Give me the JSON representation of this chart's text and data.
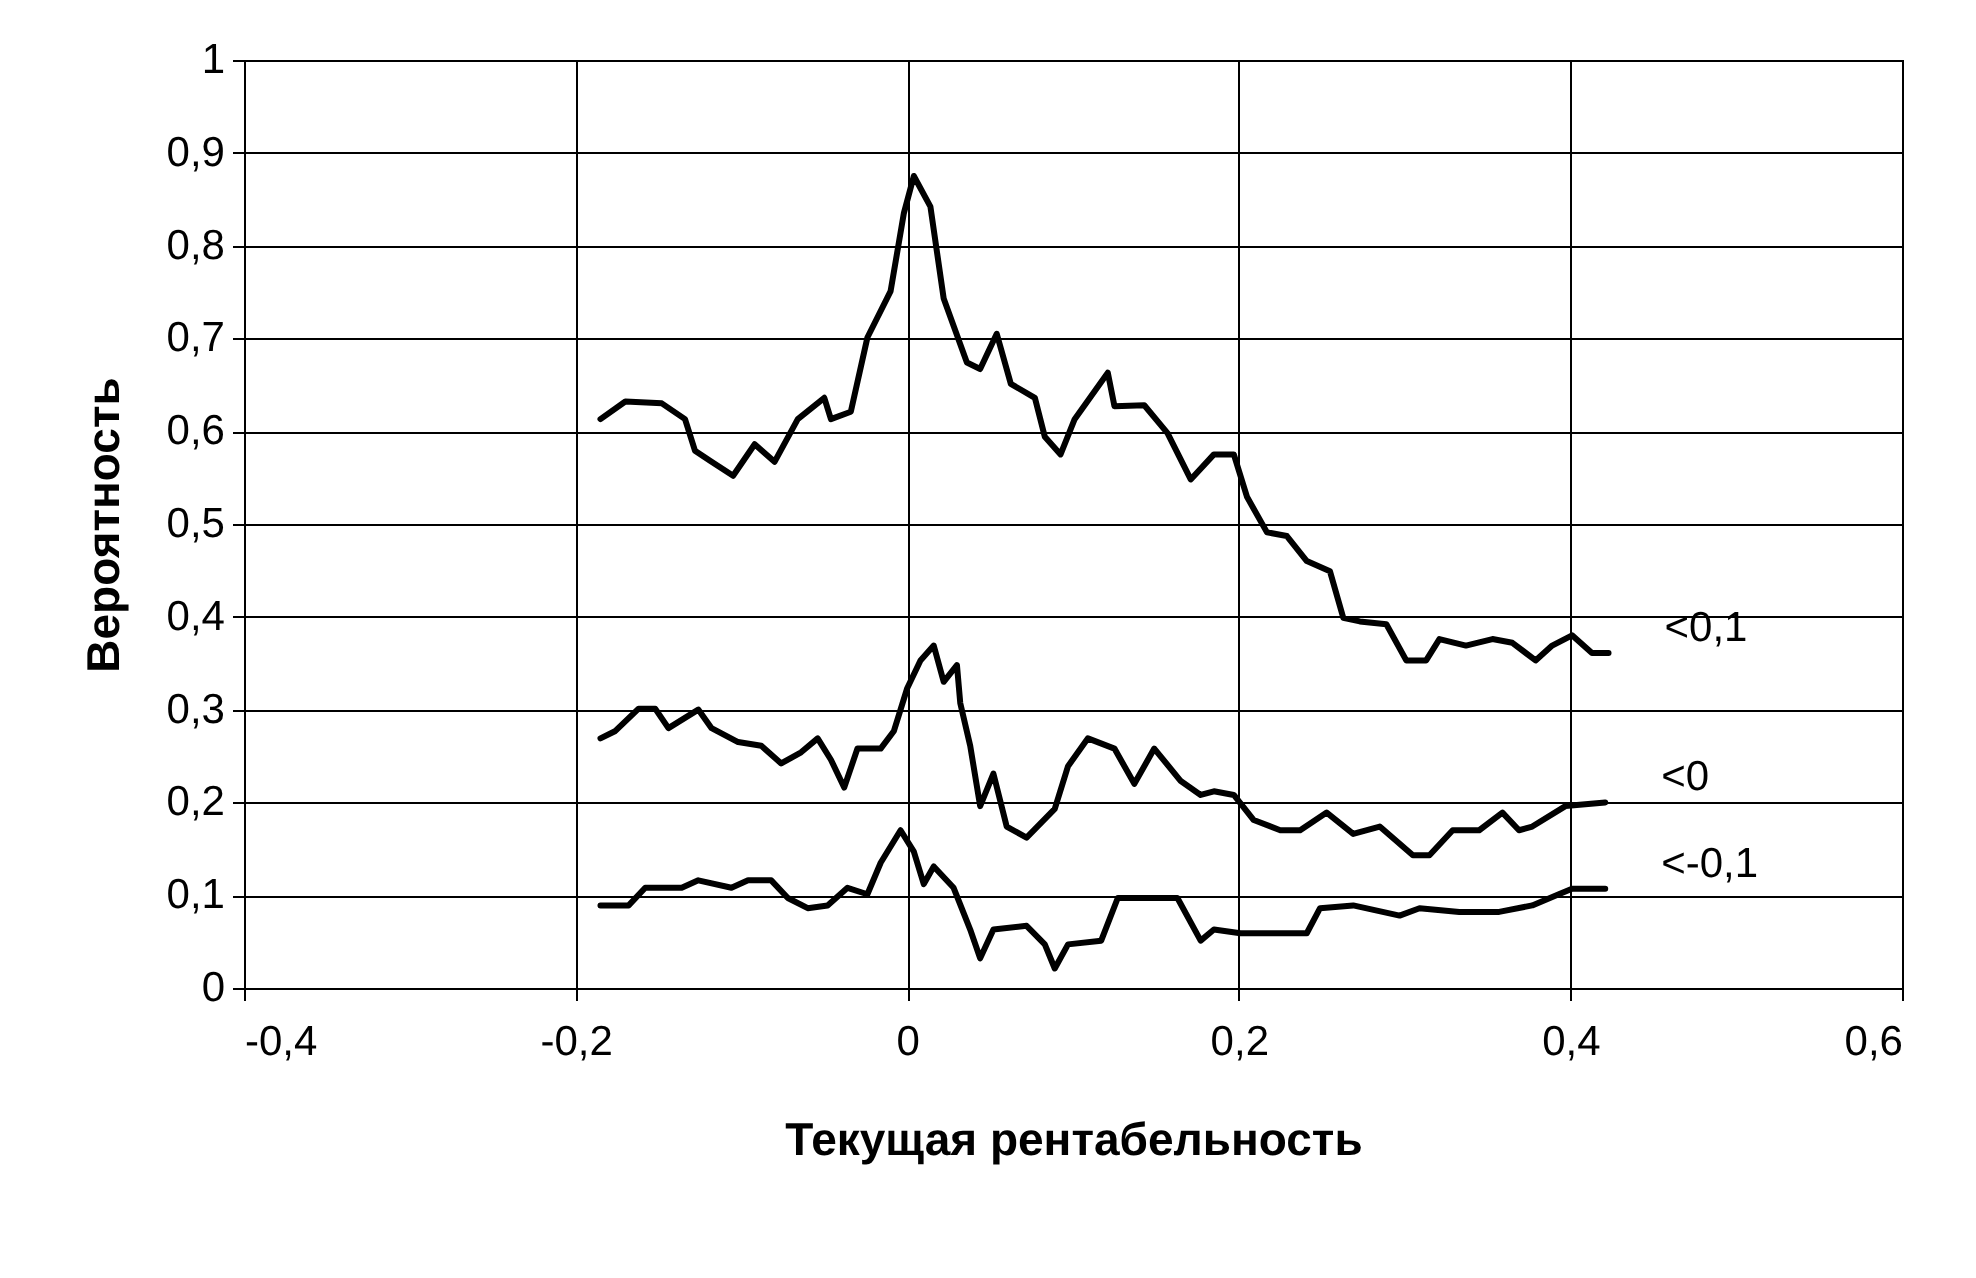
{
  "chart_data": {
    "type": "line",
    "xlabel": "Текущая рентабельность",
    "ylabel": "Вероятность",
    "xlim": [
      -0.4,
      0.6
    ],
    "ylim": [
      0,
      1
    ],
    "xticks": [
      {
        "value": -0.4,
        "label": "-0,4"
      },
      {
        "value": -0.2,
        "label": "-0,2"
      },
      0,
      {
        "value": 0.2,
        "label": "0,2"
      },
      {
        "value": 0.4,
        "label": "0,4"
      },
      {
        "value": 0.6,
        "label": "0,6"
      }
    ],
    "yticks": [
      0,
      {
        "value": 0.1,
        "label": "0,1"
      },
      {
        "value": 0.2,
        "label": "0,2"
      },
      {
        "value": 0.3,
        "label": "0,3"
      },
      {
        "value": 0.4,
        "label": "0,4"
      },
      {
        "value": 0.5,
        "label": "0,5"
      },
      {
        "value": 0.6,
        "label": "0,6"
      },
      {
        "value": 0.7,
        "label": "0,7"
      },
      {
        "value": 0.8,
        "label": "0,8"
      },
      {
        "value": 0.9,
        "label": "0,9"
      },
      1
    ],
    "grid": true,
    "legend": false,
    "marker": "none",
    "line_style": "solid",
    "series": [
      {
        "name": "<0,1",
        "color": "#000000",
        "x": [
          -0.185,
          -0.17,
          -0.148,
          -0.134,
          -0.128,
          -0.118,
          -0.105,
          -0.092,
          -0.08,
          -0.066,
          -0.05,
          -0.046,
          -0.034,
          -0.024,
          -0.01,
          -0.002,
          0.004,
          0.014,
          0.022,
          0.036,
          0.044,
          0.054,
          0.0625,
          0.077,
          0.083,
          0.0925,
          0.101,
          0.121,
          0.125,
          0.143,
          0.157,
          0.171,
          0.185,
          0.197,
          0.205,
          0.217,
          0.229,
          0.241,
          0.255,
          0.263,
          0.273,
          0.289,
          0.301,
          0.313,
          0.321,
          0.337,
          0.353,
          0.365,
          0.379,
          0.389,
          0.401,
          0.413,
          0.423
        ],
        "values": [
          0.613,
          0.632,
          0.63,
          0.613,
          0.579,
          0.567,
          0.552,
          0.586,
          0.567,
          0.613,
          0.636,
          0.613,
          0.621,
          0.701,
          0.751,
          0.835,
          0.875,
          0.842,
          0.743,
          0.674,
          0.667,
          0.705,
          0.651,
          0.636,
          0.594,
          0.575,
          0.613,
          0.663,
          0.627,
          0.628,
          0.598,
          0.548,
          0.575,
          0.575,
          0.529,
          0.491,
          0.487,
          0.46,
          0.449,
          0.399,
          0.395,
          0.392,
          0.353,
          0.353,
          0.376,
          0.369,
          0.376,
          0.372,
          0.353,
          0.369,
          0.38,
          0.361,
          0.361
        ]
      },
      {
        "name": "<0",
        "color": "#000000",
        "x": [
          -0.185,
          -0.176,
          -0.162,
          -0.152,
          -0.144,
          -0.126,
          -0.118,
          -0.102,
          -0.088,
          -0.076,
          -0.064,
          -0.054,
          -0.046,
          -0.038,
          -0.03,
          -0.016,
          -0.008,
          0.0,
          0.008,
          0.016,
          0.022,
          0.03,
          0.032,
          0.038,
          0.044,
          0.052,
          0.06,
          0.072,
          0.089,
          0.097,
          0.109,
          0.125,
          0.137,
          0.149,
          0.165,
          0.177,
          0.185,
          0.197,
          0.209,
          0.225,
          0.237,
          0.253,
          0.269,
          0.285,
          0.305,
          0.315,
          0.329,
          0.345,
          0.359,
          0.369,
          0.377,
          0.397,
          0.421
        ],
        "values": [
          0.269,
          0.277,
          0.301,
          0.301,
          0.28,
          0.3,
          0.28,
          0.265,
          0.261,
          0.242,
          0.254,
          0.269,
          0.246,
          0.216,
          0.258,
          0.258,
          0.277,
          0.323,
          0.353,
          0.369,
          0.33,
          0.348,
          0.307,
          0.261,
          0.196,
          0.231,
          0.174,
          0.162,
          0.193,
          0.239,
          0.269,
          0.258,
          0.22,
          0.258,
          0.223,
          0.208,
          0.212,
          0.208,
          0.181,
          0.17,
          0.17,
          0.189,
          0.166,
          0.174,
          0.143,
          0.143,
          0.17,
          0.17,
          0.189,
          0.17,
          0.174,
          0.196,
          0.2
        ]
      },
      {
        "name": "<-0,1",
        "color": "#000000",
        "x": [
          -0.185,
          -0.168,
          -0.158,
          -0.136,
          -0.126,
          -0.106,
          -0.096,
          -0.082,
          -0.072,
          -0.06,
          -0.048,
          -0.036,
          -0.024,
          -0.016,
          -0.004,
          0.004,
          0.01,
          0.016,
          0.028,
          0.038,
          0.044,
          0.052,
          0.072,
          0.083,
          0.089,
          0.097,
          0.117,
          0.127,
          0.145,
          0.163,
          0.177,
          0.185,
          0.201,
          0.241,
          0.249,
          0.269,
          0.297,
          0.309,
          0.333,
          0.357,
          0.377,
          0.393,
          0.401,
          0.421
        ],
        "values": [
          0.089,
          0.089,
          0.108,
          0.108,
          0.116,
          0.108,
          0.116,
          0.116,
          0.097,
          0.086,
          0.089,
          0.108,
          0.101,
          0.135,
          0.17,
          0.147,
          0.112,
          0.131,
          0.108,
          0.063,
          0.032,
          0.063,
          0.067,
          0.047,
          0.021,
          0.047,
          0.051,
          0.097,
          0.097,
          0.097,
          0.051,
          0.063,
          0.059,
          0.059,
          0.086,
          0.089,
          0.078,
          0.086,
          0.082,
          0.082,
          0.089,
          0.101,
          0.107,
          0.107
        ]
      }
    ]
  }
}
